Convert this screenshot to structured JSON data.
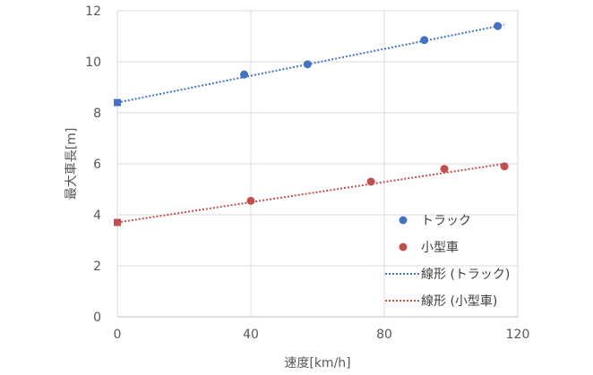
{
  "chart_data": {
    "type": "scatter",
    "xlabel": "速度[km/h]",
    "ylabel": "最大車長[m]",
    "xlim": [
      0,
      120
    ],
    "ylim": [
      0,
      12
    ],
    "xticks": [
      0,
      40,
      80,
      120
    ],
    "yticks": [
      0,
      2,
      4,
      6,
      8,
      10,
      12
    ],
    "grid": "vertical",
    "legend_position": "bottom-right",
    "series": [
      {
        "name": "トラック",
        "kind": "points",
        "color": "#4472C4",
        "points": [
          [
            38,
            9.5
          ],
          [
            57,
            9.9
          ],
          [
            92,
            10.85
          ],
          [
            114,
            11.4
          ]
        ]
      },
      {
        "name": "小型車",
        "kind": "points",
        "color": "#C0504D",
        "points": [
          [
            40,
            4.55
          ],
          [
            76,
            5.3
          ],
          [
            98,
            5.8
          ],
          [
            116,
            5.9
          ]
        ]
      },
      {
        "name": "線形 (トラック)",
        "kind": "trendline",
        "color": "#4472C4",
        "intercept": 8.4,
        "end": [
          116,
          11.45
        ]
      },
      {
        "name": "線形 (小型車)",
        "kind": "trendline",
        "color": "#C0504D",
        "intercept": 3.7,
        "end": [
          116,
          6.0
        ]
      }
    ]
  }
}
